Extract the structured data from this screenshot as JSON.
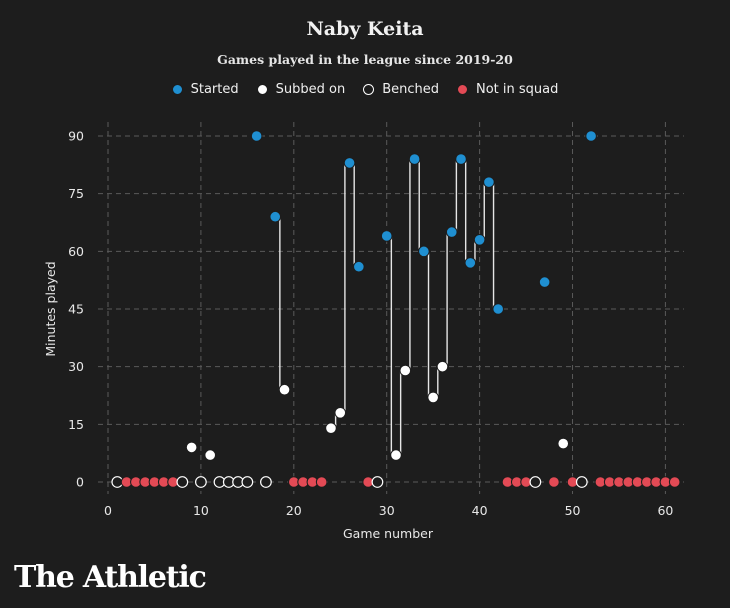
{
  "brand": "The Athletic",
  "chart_data": {
    "type": "scatter",
    "title": "Naby Keita",
    "subtitle": "Games played in the league since 2019-20",
    "xlabel": "Game number",
    "ylabel": "Minutes played",
    "xlim": [
      0,
      62
    ],
    "ylim": [
      0,
      90
    ],
    "xticks": [
      0,
      10,
      20,
      30,
      40,
      50,
      60
    ],
    "yticks": [
      0,
      15,
      30,
      45,
      60,
      75,
      90
    ],
    "grid": true,
    "legend_position": "top-center",
    "legend": [
      {
        "key": "started",
        "label": "Started",
        "color": "#1f8fd1"
      },
      {
        "key": "subbed",
        "label": "Subbed on",
        "color": "#ffffff"
      },
      {
        "key": "benched",
        "label": "Benched",
        "color": "#1d1d1d"
      },
      {
        "key": "notinsquad",
        "label": "Not in squad",
        "color": "#e34a55"
      }
    ],
    "points": [
      {
        "x": 1,
        "y": 0,
        "s": "benched"
      },
      {
        "x": 2,
        "y": 0,
        "s": "notinsquad"
      },
      {
        "x": 3,
        "y": 0,
        "s": "notinsquad"
      },
      {
        "x": 4,
        "y": 0,
        "s": "notinsquad"
      },
      {
        "x": 5,
        "y": 0,
        "s": "notinsquad"
      },
      {
        "x": 6,
        "y": 0,
        "s": "notinsquad"
      },
      {
        "x": 7,
        "y": 0,
        "s": "notinsquad"
      },
      {
        "x": 8,
        "y": 0,
        "s": "benched"
      },
      {
        "x": 9,
        "y": 9,
        "s": "subbed"
      },
      {
        "x": 10,
        "y": 0,
        "s": "benched"
      },
      {
        "x": 11,
        "y": 7,
        "s": "subbed"
      },
      {
        "x": 12,
        "y": 0,
        "s": "benched"
      },
      {
        "x": 13,
        "y": 0,
        "s": "benched"
      },
      {
        "x": 14,
        "y": 0,
        "s": "benched"
      },
      {
        "x": 15,
        "y": 0,
        "s": "benched"
      },
      {
        "x": 16,
        "y": 90,
        "s": "started"
      },
      {
        "x": 17,
        "y": 0,
        "s": "benched"
      },
      {
        "x": 18,
        "y": 69,
        "s": "started"
      },
      {
        "x": 19,
        "y": 24,
        "s": "subbed"
      },
      {
        "x": 20,
        "y": 0,
        "s": "notinsquad"
      },
      {
        "x": 21,
        "y": 0,
        "s": "notinsquad"
      },
      {
        "x": 22,
        "y": 0,
        "s": "notinsquad"
      },
      {
        "x": 23,
        "y": 0,
        "s": "notinsquad"
      },
      {
        "x": 24,
        "y": 14,
        "s": "subbed"
      },
      {
        "x": 25,
        "y": 18,
        "s": "subbed"
      },
      {
        "x": 26,
        "y": 83,
        "s": "started"
      },
      {
        "x": 27,
        "y": 56,
        "s": "started"
      },
      {
        "x": 28,
        "y": 0,
        "s": "notinsquad"
      },
      {
        "x": 29,
        "y": 0,
        "s": "benched"
      },
      {
        "x": 30,
        "y": 64,
        "s": "started"
      },
      {
        "x": 31,
        "y": 7,
        "s": "subbed"
      },
      {
        "x": 32,
        "y": 29,
        "s": "subbed"
      },
      {
        "x": 33,
        "y": 84,
        "s": "started"
      },
      {
        "x": 34,
        "y": 60,
        "s": "started"
      },
      {
        "x": 35,
        "y": 22,
        "s": "subbed"
      },
      {
        "x": 36,
        "y": 30,
        "s": "subbed"
      },
      {
        "x": 37,
        "y": 65,
        "s": "started"
      },
      {
        "x": 38,
        "y": 84,
        "s": "started"
      },
      {
        "x": 39,
        "y": 57,
        "s": "started"
      },
      {
        "x": 40,
        "y": 63,
        "s": "started"
      },
      {
        "x": 41,
        "y": 78,
        "s": "started"
      },
      {
        "x": 42,
        "y": 45,
        "s": "started"
      },
      {
        "x": 43,
        "y": 0,
        "s": "notinsquad"
      },
      {
        "x": 44,
        "y": 0,
        "s": "notinsquad"
      },
      {
        "x": 45,
        "y": 0,
        "s": "notinsquad"
      },
      {
        "x": 46,
        "y": 0,
        "s": "benched"
      },
      {
        "x": 47,
        "y": 52,
        "s": "started"
      },
      {
        "x": 48,
        "y": 0,
        "s": "notinsquad"
      },
      {
        "x": 49,
        "y": 10,
        "s": "subbed"
      },
      {
        "x": 50,
        "y": 0,
        "s": "notinsquad"
      },
      {
        "x": 51,
        "y": 0,
        "s": "benched"
      },
      {
        "x": 52,
        "y": 90,
        "s": "started"
      },
      {
        "x": 53,
        "y": 0,
        "s": "notinsquad"
      },
      {
        "x": 54,
        "y": 0,
        "s": "notinsquad"
      },
      {
        "x": 55,
        "y": 0,
        "s": "notinsquad"
      },
      {
        "x": 56,
        "y": 0,
        "s": "notinsquad"
      },
      {
        "x": 57,
        "y": 0,
        "s": "notinsquad"
      },
      {
        "x": 58,
        "y": 0,
        "s": "notinsquad"
      },
      {
        "x": 59,
        "y": 0,
        "s": "notinsquad"
      },
      {
        "x": 60,
        "y": 0,
        "s": "notinsquad"
      },
      {
        "x": 61,
        "y": 0,
        "s": "notinsquad"
      }
    ],
    "connected_runs": [
      [
        18,
        19
      ],
      [
        24,
        25,
        26,
        27
      ],
      [
        30,
        31,
        32,
        33,
        34,
        35,
        36,
        37,
        38,
        39,
        40,
        41,
        42
      ]
    ]
  }
}
